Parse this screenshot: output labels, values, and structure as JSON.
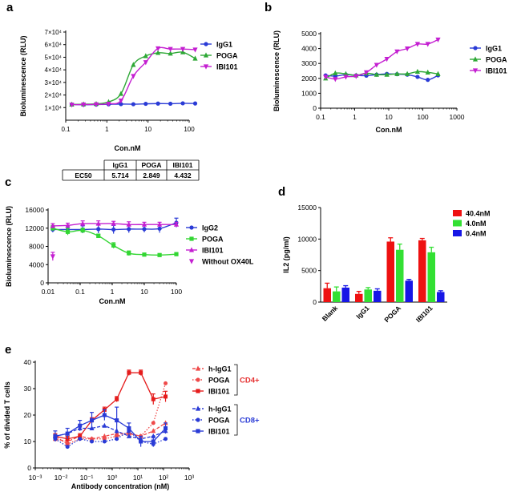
{
  "chart_data": [
    {
      "panel": "a",
      "type": "line",
      "xlabel": "Con.nM",
      "ylabel": "Bioluminescence (RLU)",
      "xscale": "log",
      "xlim": [
        0.1,
        100
      ],
      "ylim": [
        0,
        70000
      ],
      "xticks": [
        "0.1",
        "1",
        "10",
        "100"
      ],
      "yticks": [
        "1×10⁴",
        "2×10⁴",
        "3×10⁴",
        "4×10⁴",
        "5×10⁴",
        "6×10⁴",
        "7×10⁴"
      ],
      "legend_position": "right",
      "series": [
        {
          "name": "IgG1",
          "color": "#2a3bd6",
          "marker": "circle",
          "x": [
            0.14,
            0.27,
            0.55,
            1.1,
            2.2,
            4.4,
            8.8,
            17.5,
            35,
            70,
            140
          ],
          "y": [
            12500,
            12300,
            12400,
            12600,
            12800,
            12700,
            13000,
            13200,
            13100,
            13400,
            13300
          ]
        },
        {
          "name": "POGA",
          "color": "#2ea836",
          "marker": "triangle-up",
          "x": [
            0.14,
            0.27,
            0.55,
            1.1,
            2.2,
            4.4,
            8.8,
            17.5,
            35,
            70,
            140
          ],
          "y": [
            12500,
            12700,
            13000,
            14500,
            21000,
            44000,
            51000,
            53500,
            53000,
            54000,
            49000
          ]
        },
        {
          "name": "IBI101",
          "color": "#c41fd1",
          "marker": "triangle-down",
          "x": [
            0.14,
            0.27,
            0.55,
            1.1,
            2.2,
            4.4,
            8.8,
            17.5,
            35,
            70,
            140
          ],
          "y": [
            12300,
            12400,
            12600,
            13000,
            15500,
            35000,
            46000,
            57000,
            56500,
            56500,
            56000
          ]
        }
      ],
      "table": {
        "row_label": "EC50",
        "columns": [
          "IgG1",
          "POGA",
          "IBI101"
        ],
        "values": [
          "5.714",
          "2.849",
          "4.432"
        ]
      }
    },
    {
      "panel": "b",
      "type": "line",
      "xlabel": "Con.nM",
      "ylabel": "Bioluminescence (RLU)",
      "xscale": "log",
      "xlim": [
        0.1,
        1000
      ],
      "ylim": [
        0,
        5000
      ],
      "xticks": [
        "0.1",
        "1",
        "10",
        "100",
        "1000"
      ],
      "yticks": [
        "0",
        "1000",
        "2000",
        "3000",
        "4000",
        "5000"
      ],
      "legend_position": "right",
      "series": [
        {
          "name": "IgG1",
          "color": "#2a3bd6",
          "marker": "circle",
          "x": [
            0.14,
            0.27,
            0.55,
            1.1,
            2.2,
            4.4,
            8.8,
            17.5,
            35,
            70,
            140,
            280
          ],
          "y": [
            2200,
            2150,
            2250,
            2200,
            2180,
            2250,
            2300,
            2280,
            2250,
            2100,
            1900,
            2200
          ]
        },
        {
          "name": "POGA",
          "color": "#2ea836",
          "marker": "triangle-up",
          "x": [
            0.14,
            0.27,
            0.55,
            1.1,
            2.2,
            4.4,
            8.8,
            17.5,
            35,
            70,
            140,
            280
          ],
          "y": [
            2000,
            2350,
            2300,
            2200,
            2350,
            2250,
            2250,
            2300,
            2300,
            2450,
            2400,
            2300
          ]
        },
        {
          "name": "IBI101",
          "color": "#c41fd1",
          "marker": "triangle-down",
          "x": [
            0.14,
            0.27,
            0.55,
            1.1,
            2.2,
            4.4,
            8.8,
            17.5,
            35,
            70,
            140,
            280
          ],
          "y": [
            2100,
            1950,
            2100,
            2150,
            2400,
            2900,
            3300,
            3800,
            4000,
            4300,
            4300,
            4600
          ]
        }
      ]
    },
    {
      "panel": "c",
      "type": "line",
      "xlabel": "Con.nM",
      "ylabel": "Bioluminescence (RLU)",
      "xscale": "log",
      "xlim": [
        0.01,
        100
      ],
      "ylim": [
        0,
        16000
      ],
      "xticks": [
        "0.01",
        "0.1",
        "1",
        "10",
        "100"
      ],
      "yticks": [
        "0",
        "4000",
        "8000",
        "12000",
        "16000"
      ],
      "legend_position": "right",
      "series": [
        {
          "name": "IgG2",
          "color": "#2a3bd6",
          "marker": "circle",
          "x": [
            0.014,
            0.041,
            0.12,
            0.37,
            1.1,
            3.3,
            10,
            30,
            100
          ],
          "y": [
            11700,
            11700,
            11700,
            11800,
            11700,
            11800,
            11800,
            11900,
            13200
          ],
          "err": [
            600,
            500,
            800,
            900,
            900,
            800,
            700,
            900,
            1000
          ]
        },
        {
          "name": "POGA",
          "color": "#33d633",
          "marker": "square",
          "x": [
            0.014,
            0.041,
            0.12,
            0.37,
            1.1,
            3.3,
            10,
            30,
            100
          ],
          "y": [
            12000,
            11200,
            11500,
            10300,
            8200,
            6500,
            6200,
            6100,
            6300
          ],
          "err": [
            600,
            700,
            500,
            400,
            600,
            500,
            300,
            300,
            300
          ]
        },
        {
          "name": "IBI101",
          "color": "#c41fd1",
          "marker": "triangle-up",
          "x": [
            0.014,
            0.041,
            0.12,
            0.37,
            1.1,
            3.3,
            10,
            30,
            100
          ],
          "y": [
            12500,
            12600,
            13000,
            13000,
            13000,
            12800,
            12800,
            12800,
            12800
          ],
          "err": [
            500,
            500,
            600,
            600,
            500,
            600,
            500,
            500,
            500
          ]
        },
        {
          "name": "Without OX40L",
          "color": "#c41fd1",
          "marker": "triangle-down",
          "x": [
            0.014
          ],
          "y": [
            5800
          ],
          "err": [
            900
          ]
        }
      ]
    },
    {
      "panel": "d",
      "type": "bar",
      "ylabel": "IL2  (pg/ml)",
      "ylim": [
        0,
        15000
      ],
      "yticks": [
        "0",
        "5000",
        "10000",
        "15000"
      ],
      "categories": [
        "Blank",
        "IgG1",
        "POGA",
        "IBI101"
      ],
      "legend_position": "top-right",
      "series": [
        {
          "name": "40.4nM",
          "color": "#ee1111",
          "values": [
            2200,
            1300,
            9600,
            9800
          ],
          "err": [
            800,
            400,
            600,
            300
          ]
        },
        {
          "name": "4.0nM",
          "color": "#33e033",
          "values": [
            1700,
            2000,
            8300,
            7900
          ],
          "err": [
            700,
            300,
            900,
            800
          ]
        },
        {
          "name": "0.4nM",
          "color": "#1616e6",
          "values": [
            2300,
            1800,
            3400,
            1600
          ],
          "err": [
            300,
            300,
            200,
            200
          ]
        }
      ]
    },
    {
      "panel": "e",
      "type": "line",
      "xlabel": "Antibody concentration (nM)",
      "ylabel": "% of divided T cells",
      "xscale": "log",
      "xlim": [
        0.001,
        1000
      ],
      "ylim": [
        0,
        40
      ],
      "xticks": [
        "10⁻³",
        "10⁻²",
        "10⁻¹",
        "10⁰",
        "10¹",
        "10²",
        "10³"
      ],
      "yticks": [
        "0",
        "10",
        "20",
        "30",
        "40"
      ],
      "legend_position": "right",
      "group_labels": [
        {
          "label": "CD4+",
          "color": "#e53030"
        },
        {
          "label": "CD8+",
          "color": "#2a3bd6"
        }
      ],
      "series": [
        {
          "name": "h-IgG1",
          "group": "CD4+",
          "color": "#ef4a4a",
          "marker": "triangle-up",
          "line": "dashed",
          "x": [
            0.006,
            0.018,
            0.055,
            0.16,
            0.5,
            1.5,
            4.5,
            13,
            40,
            120
          ],
          "y": [
            11,
            10,
            12,
            11,
            12,
            13,
            13,
            12,
            14,
            17
          ]
        },
        {
          "name": "POGA",
          "group": "CD4+",
          "color": "#ef4a4a",
          "marker": "circle",
          "line": "dotted",
          "x": [
            0.006,
            0.018,
            0.055,
            0.16,
            0.5,
            1.5,
            4.5,
            13,
            40,
            120
          ],
          "y": [
            12,
            9,
            11,
            11,
            11,
            12,
            13,
            12,
            17,
            32
          ]
        },
        {
          "name": "IBI101",
          "group": "CD4+",
          "color": "#e51c1c",
          "marker": "square",
          "line": "solid",
          "x": [
            0.006,
            0.018,
            0.055,
            0.16,
            0.5,
            1.5,
            4.5,
            13,
            40,
            120
          ],
          "y": [
            12,
            11,
            12,
            18,
            22,
            26,
            36,
            36,
            26,
            27
          ],
          "err": [
            1,
            1,
            1,
            1,
            1,
            1,
            1,
            1,
            2,
            2
          ]
        },
        {
          "name": "h-IgG1",
          "group": "CD8+",
          "color": "#2a3bd6",
          "marker": "triangle-up",
          "line": "dashed",
          "x": [
            0.006,
            0.018,
            0.055,
            0.16,
            0.5,
            1.5,
            4.5,
            13,
            40,
            120
          ],
          "y": [
            12,
            13,
            15,
            15,
            16,
            14,
            12,
            11,
            12,
            14
          ]
        },
        {
          "name": "POGA",
          "group": "CD8+",
          "color": "#2a3bd6",
          "marker": "circle",
          "line": "dotted",
          "x": [
            0.006,
            0.018,
            0.055,
            0.16,
            0.5,
            1.5,
            4.5,
            13,
            40,
            120
          ],
          "y": [
            11,
            8,
            11,
            10,
            10,
            11,
            14,
            10,
            9,
            11
          ]
        },
        {
          "name": "IBI101",
          "group": "CD8+",
          "color": "#2a3bd6",
          "marker": "square",
          "line": "solid",
          "x": [
            0.006,
            0.018,
            0.055,
            0.16,
            0.5,
            1.5,
            4.5,
            13,
            40,
            120
          ],
          "y": [
            12,
            13,
            16,
            18,
            20,
            18,
            15,
            10,
            10,
            15
          ],
          "err": [
            2,
            2,
            2,
            3,
            2,
            5,
            2,
            2,
            2,
            2
          ]
        }
      ]
    }
  ]
}
